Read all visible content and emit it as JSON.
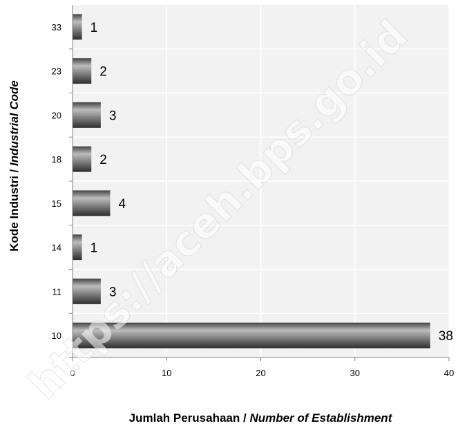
{
  "chart_data": {
    "type": "bar",
    "orientation": "horizontal",
    "categories": [
      "10",
      "11",
      "14",
      "15",
      "18",
      "20",
      "23",
      "33"
    ],
    "values": [
      38,
      3,
      1,
      4,
      2,
      3,
      2,
      1
    ],
    "xlabel_bold": "Jumlah Perusahaan / ",
    "xlabel_italic": "Number of Establishment",
    "ylabel_bold": "Kode Industri / ",
    "ylabel_italic": "Industrial Code",
    "xlim": [
      0,
      40
    ],
    "xticks": [
      0,
      10,
      20,
      30,
      40
    ],
    "grid": true,
    "plot_background": "#f2f2f2",
    "bar_color_dark": "#3d3d3d",
    "bar_color_light": "#bdbdbd"
  },
  "watermark": "https://aceh.bps.go.id"
}
